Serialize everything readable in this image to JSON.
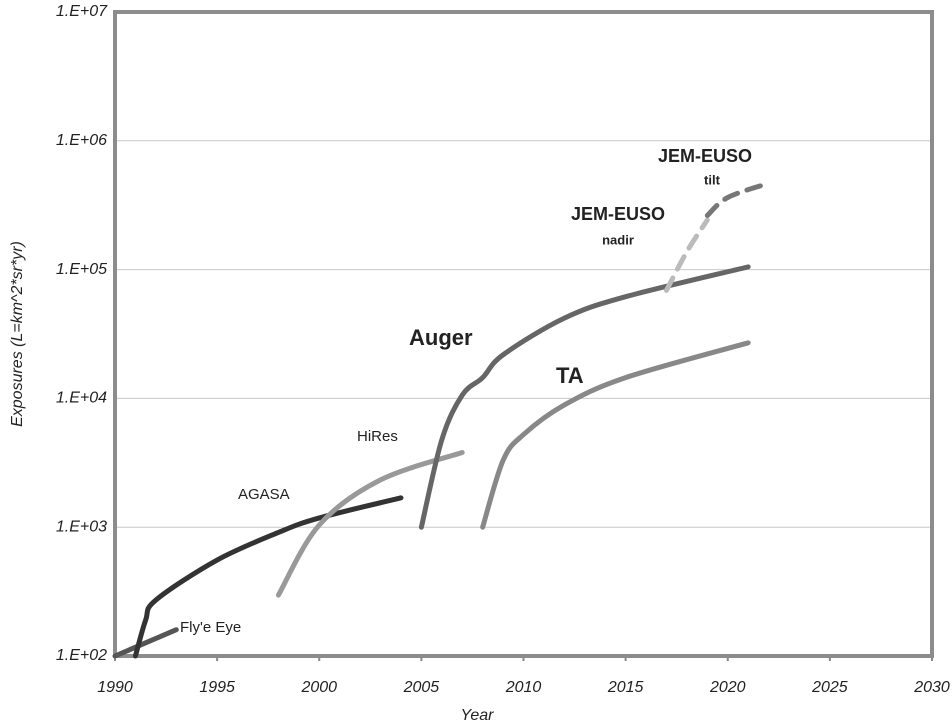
{
  "chart_data": {
    "type": "line",
    "xlabel": "Year",
    "ylabel": "Exposures (L=km^2*sr*yr)",
    "xlim": [
      1990,
      2030
    ],
    "xticks": [
      1990,
      1995,
      2000,
      2005,
      2010,
      2015,
      2020,
      2025,
      2030
    ],
    "ylim": [
      100,
      10000000
    ],
    "log_y": true,
    "grid": true,
    "yticks": [
      {
        "value": 100,
        "label": "1.E+02"
      },
      {
        "value": 1000,
        "label": "1.E+03"
      },
      {
        "value": 10000,
        "label": "1.E+04"
      },
      {
        "value": 100000,
        "label": "1.E+05"
      },
      {
        "value": 1000000,
        "label": "1.E+06"
      },
      {
        "value": 10000000,
        "label": "1.E+07"
      }
    ],
    "series": [
      {
        "name": "Fly'e Eye",
        "color": "#555555",
        "dashed": false,
        "x": [
          1990,
          1993
        ],
        "values": [
          100,
          160
        ]
      },
      {
        "name": "AGASA",
        "color": "#333333",
        "dashed": false,
        "x": [
          1991,
          1991.5,
          1992,
          1995,
          1998,
          2000,
          2004
        ],
        "values": [
          100,
          190,
          272,
          556,
          910,
          1180,
          1690
        ]
      },
      {
        "name": "HiRes",
        "color": "#999999",
        "dashed": false,
        "x": [
          1998,
          2000,
          2003,
          2007
        ],
        "values": [
          297,
          1040,
          2330,
          3800
        ]
      },
      {
        "name": "Auger",
        "color": "#666666",
        "dashed": false,
        "x": [
          2005,
          2006,
          2007,
          2008,
          2009,
          2012,
          2015,
          2021
        ],
        "values": [
          1000,
          4770,
          10600,
          14500,
          21800,
          42000,
          61600,
          105000
        ]
      },
      {
        "name": "TA",
        "color": "#888888",
        "dashed": false,
        "x": [
          2008,
          2009,
          2010,
          2012,
          2015,
          2021
        ],
        "values": [
          1000,
          3300,
          5240,
          8900,
          14500,
          27000
        ]
      },
      {
        "name": "JEM-EUSO",
        "sublabel": "nadir",
        "color": "#bbbbbb",
        "dashed": true,
        "x": [
          2017,
          2018,
          2019
        ],
        "values": [
          69000,
          138000,
          243000
        ]
      },
      {
        "name": "JEM-EUSO",
        "sublabel": "tilt",
        "color": "#777777",
        "dashed": true,
        "x": [
          2019,
          2020,
          2022
        ],
        "values": [
          263000,
          363000,
          468000
        ]
      }
    ]
  }
}
